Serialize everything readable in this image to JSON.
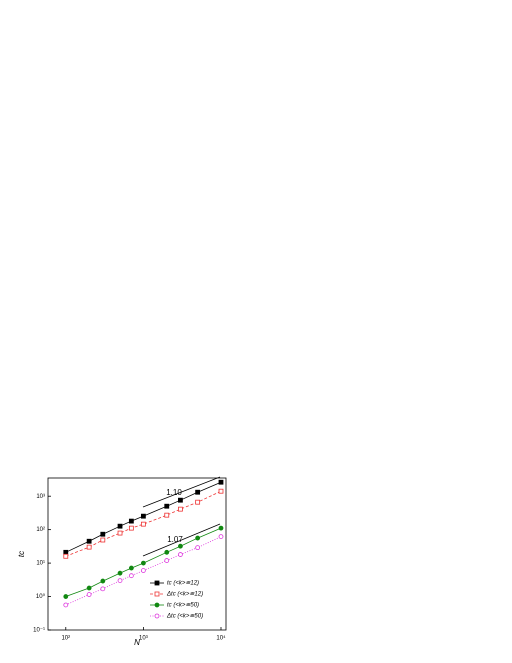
{
  "chart_data": {
    "type": "line",
    "xlabel": "N",
    "ylabel": "tc",
    "log_x": true,
    "log_y": true,
    "xlim": [
      59,
      11600
    ],
    "ylim": [
      0.1,
      3500
    ],
    "xticks": [
      {
        "value": 100,
        "label": "10²"
      },
      {
        "value": 1000,
        "label": "10³"
      },
      {
        "value": 10000,
        "label": "10⁴"
      }
    ],
    "yticks": [
      {
        "value": 0.1,
        "label": "10⁻¹"
      },
      {
        "value": 1,
        "label": "10⁰"
      },
      {
        "value": 10,
        "label": "10¹"
      },
      {
        "value": 100,
        "label": "10²"
      },
      {
        "value": 1000,
        "label": "10³"
      }
    ],
    "x": [
      100,
      200,
      300,
      500,
      700,
      1000,
      2000,
      3000,
      5000,
      10000
    ],
    "legend": "lower right",
    "annotations": [
      "1.10",
      "1.07"
    ],
    "series": [
      {
        "name": "tc (<k>≅12)",
        "color": "#000000",
        "marker": "filled-square",
        "line_style": "solid",
        "values": [
          21,
          45,
          73,
          127,
          180,
          253,
          502,
          760,
          1315,
          2620
        ]
      },
      {
        "name": "Δtc (<k>≅12)",
        "color": "#ee3333",
        "marker": "open-square",
        "line_style": "dashed",
        "values": [
          16,
          30,
          49,
          79,
          111,
          146,
          271,
          410,
          662,
          1410
        ]
      },
      {
        "name": "tc (<k>≅50)",
        "color": "#118811",
        "marker": "filled-circle",
        "line_style": "solid",
        "values": [
          1.0,
          1.8,
          2.9,
          5.0,
          7.1,
          10,
          21,
          32,
          56,
          111
        ]
      },
      {
        "name": "Δtc (<k>≅50)",
        "color": "#dd33dd",
        "marker": "open-circle",
        "line_style": "dotted",
        "values": [
          0.56,
          1.15,
          1.7,
          3.0,
          4.2,
          6.0,
          11.9,
          18,
          29,
          62
        ]
      }
    ]
  }
}
